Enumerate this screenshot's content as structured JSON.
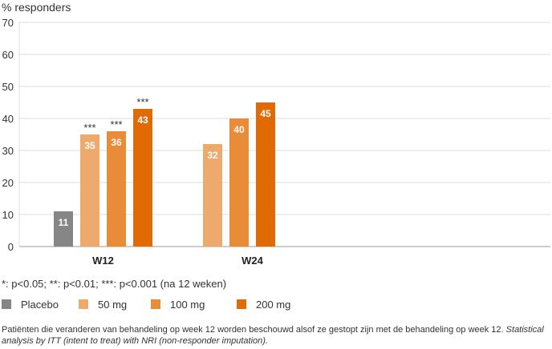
{
  "chart_data": {
    "type": "bar",
    "ylabel": "% responders",
    "ylim": [
      0,
      70
    ],
    "yticks": [
      0,
      10,
      20,
      30,
      40,
      50,
      60,
      70
    ],
    "grid": true,
    "categories": [
      "W12",
      "W24"
    ],
    "series": [
      {
        "name": "Placebo",
        "color": "#868686",
        "values": [
          11,
          null
        ]
      },
      {
        "name": "50 mg",
        "color": "#eea96c",
        "values": [
          35,
          32
        ]
      },
      {
        "name": "100 mg",
        "color": "#e88c37",
        "values": [
          36,
          40
        ]
      },
      {
        "name": "200 mg",
        "color": "#e06b05",
        "values": [
          43,
          45
        ]
      }
    ],
    "annotations": [
      {
        "category": "W12",
        "series": "50 mg",
        "text": "***"
      },
      {
        "category": "W12",
        "series": "100 mg",
        "text": "***"
      },
      {
        "category": "W12",
        "series": "200 mg",
        "text": "***"
      }
    ]
  },
  "footnote": "*: p<0.05; **: p<0.01; ***: p<0.001 (na 12 weken)",
  "note": {
    "text": "Patiënten die veranderen van behandeling op week 12 worden beschouwd alsof ze gestopt zijn met de behandeling op week 12. ",
    "italic": "Statistical analysis by ITT (intent to treat) with NRI (non-responder imputation)."
  }
}
